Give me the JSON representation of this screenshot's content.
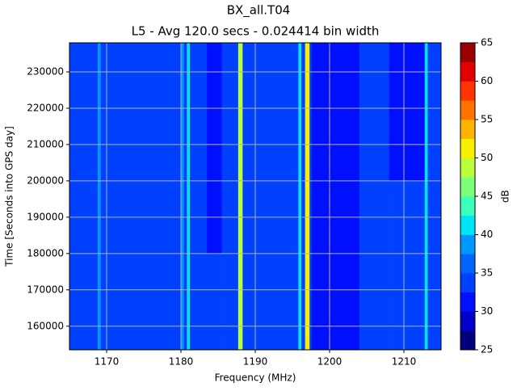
{
  "chart_data": {
    "type": "heatmap",
    "title": "BX_all.T04",
    "subtitle": "L5 - Avg 120.0 secs - 0.024414 bin width",
    "xlabel": "Frequency (MHz)",
    "ylabel": "Time [Seconds into GPS day]",
    "xlim": [
      1165,
      1215
    ],
    "xticks": [
      1170,
      1180,
      1190,
      1200,
      1210
    ],
    "ylim": [
      153500,
      238000
    ],
    "yticks": [
      160000,
      170000,
      180000,
      190000,
      200000,
      210000,
      220000,
      230000
    ],
    "grid": true,
    "xbins": [
      1165,
      1168.8,
      1169.2,
      1180,
      1180.4,
      1180.8,
      1181.2,
      1183.5,
      1185.5,
      1187.7,
      1188.3,
      1195.8,
      1196.2,
      1196.7,
      1197.3,
      1197.6,
      1204,
      1208,
      1212.8,
      1213.2,
      1215
    ],
    "ybins": [
      153500,
      180000,
      200000,
      238000
    ],
    "z": [
      [
        34,
        38,
        34,
        38,
        34,
        40,
        34,
        34,
        34,
        48,
        34,
        40,
        34,
        50,
        34,
        32,
        34,
        34,
        40,
        34
      ],
      [
        34,
        38,
        34,
        38,
        34,
        40,
        34,
        32,
        34,
        48,
        34,
        40,
        34,
        50,
        34,
        31,
        34,
        33,
        40,
        34
      ],
      [
        34,
        38,
        34,
        38,
        34,
        40,
        34,
        32,
        34,
        48,
        34,
        40,
        34,
        50,
        34,
        30,
        33,
        32,
        40,
        34
      ]
    ],
    "colorbar": {
      "label": "dB",
      "lim": [
        25,
        65
      ],
      "ticks": [
        25,
        30,
        35,
        40,
        45,
        50,
        55,
        60,
        65
      ],
      "colors": [
        "#00007f",
        "#0000c8",
        "#0010ff",
        "#0040ff",
        "#0064ff",
        "#0098ff",
        "#00e4f8",
        "#3cffba",
        "#7cff7a",
        "#baff3c",
        "#f8f000",
        "#ffb400",
        "#ff7200",
        "#ff3400",
        "#e40000",
        "#9a0000"
      ]
    }
  }
}
